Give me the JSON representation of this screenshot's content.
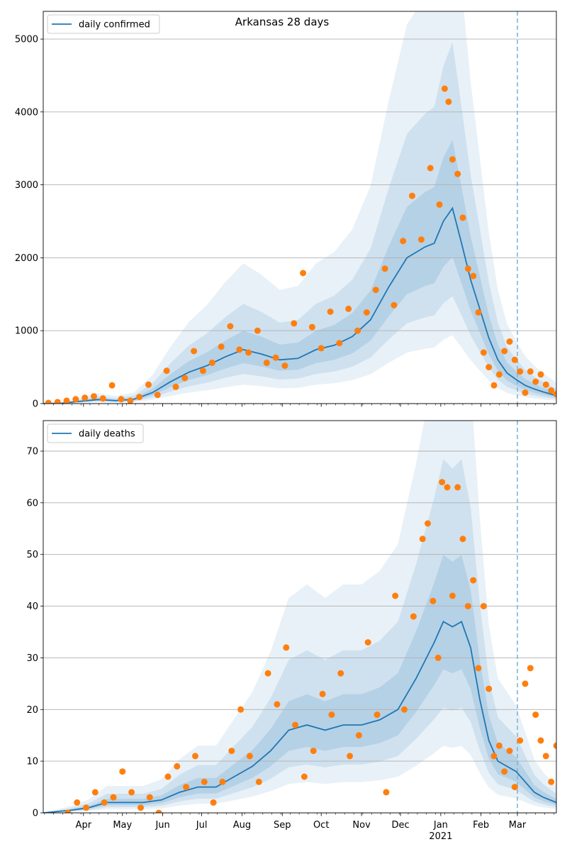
{
  "figure": {
    "title": "Arkansas 28 days",
    "colors": {
      "line": "#1f77b4",
      "points": "#ff7f0e",
      "band": "#1f77b4",
      "grid": "#b0b0b0",
      "forecast_line": "#7fb5d6"
    }
  },
  "chart_data": [
    {
      "type": "line",
      "title": "Arkansas 28 days",
      "legend": "daily confirmed",
      "legend_position": "top-left",
      "grid": "horizontal",
      "xlabel": "",
      "ylabel": "",
      "xlim": [
        "2020-03-01",
        "2021-03-31"
      ],
      "ylim": [
        0,
        5380
      ],
      "yticks": [
        0,
        1000,
        2000,
        3000,
        4000,
        5000
      ],
      "forecast_start": "2021-03-01",
      "series": [
        {
          "name": "daily confirmed",
          "kind": "line",
          "points": [
            [
              "2020-03-01",
              0
            ],
            [
              "2020-03-15",
              5
            ],
            [
              "2020-03-29",
              30
            ],
            [
              "2020-04-12",
              55
            ],
            [
              "2020-04-26",
              40
            ],
            [
              "2020-05-10",
              60
            ],
            [
              "2020-05-24",
              150
            ],
            [
              "2020-06-07",
              300
            ],
            [
              "2020-06-21",
              430
            ],
            [
              "2020-07-05",
              520
            ],
            [
              "2020-07-19",
              640
            ],
            [
              "2020-08-02",
              740
            ],
            [
              "2020-08-16",
              680
            ],
            [
              "2020-08-30",
              600
            ],
            [
              "2020-09-13",
              620
            ],
            [
              "2020-09-27",
              740
            ],
            [
              "2020-10-11",
              800
            ],
            [
              "2020-10-25",
              920
            ],
            [
              "2020-11-08",
              1150
            ],
            [
              "2020-11-22",
              1600
            ],
            [
              "2020-12-06",
              2000
            ],
            [
              "2020-12-20",
              2150
            ],
            [
              "2020-12-27",
              2200
            ],
            [
              "2021-01-03",
              2500
            ],
            [
              "2021-01-10",
              2680
            ],
            [
              "2021-01-17",
              2200
            ],
            [
              "2021-01-24",
              1700
            ],
            [
              "2021-01-31",
              1300
            ],
            [
              "2021-02-07",
              900
            ],
            [
              "2021-02-14",
              600
            ],
            [
              "2021-02-21",
              420
            ],
            [
              "2021-02-28",
              330
            ],
            [
              "2021-03-07",
              250
            ],
            [
              "2021-03-14",
              200
            ],
            [
              "2021-03-21",
              160
            ],
            [
              "2021-03-31",
              110
            ]
          ]
        },
        {
          "name": "observed",
          "kind": "scatter",
          "points": [
            [
              "2020-03-05",
              10
            ],
            [
              "2020-03-12",
              20
            ],
            [
              "2020-03-19",
              40
            ],
            [
              "2020-03-26",
              60
            ],
            [
              "2020-04-02",
              80
            ],
            [
              "2020-04-09",
              100
            ],
            [
              "2020-04-16",
              70
            ],
            [
              "2020-04-23",
              250
            ],
            [
              "2020-04-30",
              60
            ],
            [
              "2020-05-07",
              40
            ],
            [
              "2020-05-14",
              90
            ],
            [
              "2020-05-21",
              260
            ],
            [
              "2020-05-28",
              120
            ],
            [
              "2020-06-04",
              450
            ],
            [
              "2020-06-11",
              230
            ],
            [
              "2020-06-18",
              350
            ],
            [
              "2020-06-25",
              720
            ],
            [
              "2020-07-02",
              450
            ],
            [
              "2020-07-09",
              560
            ],
            [
              "2020-07-16",
              780
            ],
            [
              "2020-07-23",
              1060
            ],
            [
              "2020-07-30",
              740
            ],
            [
              "2020-08-06",
              700
            ],
            [
              "2020-08-13",
              1000
            ],
            [
              "2020-08-20",
              560
            ],
            [
              "2020-08-27",
              630
            ],
            [
              "2020-09-03",
              520
            ],
            [
              "2020-09-10",
              1100
            ],
            [
              "2020-09-17",
              1790
            ],
            [
              "2020-09-24",
              1050
            ],
            [
              "2020-10-01",
              760
            ],
            [
              "2020-10-08",
              1260
            ],
            [
              "2020-10-15",
              830
            ],
            [
              "2020-10-22",
              1300
            ],
            [
              "2020-10-29",
              1000
            ],
            [
              "2020-11-05",
              1250
            ],
            [
              "2020-11-12",
              1560
            ],
            [
              "2020-11-19",
              1850
            ],
            [
              "2020-11-26",
              1350
            ],
            [
              "2020-12-03",
              2230
            ],
            [
              "2020-12-10",
              2850
            ],
            [
              "2020-12-17",
              2250
            ],
            [
              "2020-12-24",
              3230
            ],
            [
              "2020-12-31",
              2730
            ],
            [
              "2021-01-04",
              4320
            ],
            [
              "2021-01-07",
              4140
            ],
            [
              "2021-01-10",
              3350
            ],
            [
              "2021-01-14",
              3150
            ],
            [
              "2021-01-18",
              2550
            ],
            [
              "2021-01-22",
              1850
            ],
            [
              "2021-01-26",
              1750
            ],
            [
              "2021-01-30",
              1250
            ],
            [
              "2021-02-03",
              700
            ],
            [
              "2021-02-07",
              500
            ],
            [
              "2021-02-11",
              250
            ],
            [
              "2021-02-15",
              400
            ],
            [
              "2021-02-19",
              720
            ],
            [
              "2021-02-23",
              850
            ],
            [
              "2021-02-27",
              600
            ],
            [
              "2021-03-03",
              440
            ],
            [
              "2021-03-07",
              150
            ],
            [
              "2021-03-11",
              440
            ],
            [
              "2021-03-15",
              300
            ],
            [
              "2021-03-19",
              400
            ],
            [
              "2021-03-23",
              260
            ],
            [
              "2021-03-27",
              180
            ],
            [
              "2021-03-31",
              130
            ]
          ]
        }
      ]
    },
    {
      "type": "line",
      "title": "",
      "legend": "daily deaths",
      "legend_position": "top-left",
      "grid": "horizontal",
      "xlabel": "",
      "ylabel": "",
      "xlim": [
        "2020-03-01",
        "2021-03-31"
      ],
      "ylim": [
        0,
        75.9
      ],
      "yticks": [
        0,
        10,
        20,
        30,
        40,
        50,
        60,
        70
      ],
      "xticks": [
        "Apr",
        "May",
        "Jun",
        "Jul",
        "Aug",
        "Sep",
        "Oct",
        "Nov",
        "Dec",
        "Jan",
        "Feb",
        "Mar"
      ],
      "xticks_dates": [
        "2020-04-01",
        "2020-05-01",
        "2020-06-01",
        "2020-07-01",
        "2020-08-01",
        "2020-09-01",
        "2020-10-01",
        "2020-11-01",
        "2020-12-01",
        "2021-01-01",
        "2021-02-01",
        "2021-03-01"
      ],
      "year_label": "2021",
      "forecast_start": "2021-03-01",
      "series": [
        {
          "name": "daily deaths",
          "kind": "line",
          "points": [
            [
              "2020-03-01",
              0
            ],
            [
              "2020-03-22",
              0.5
            ],
            [
              "2020-04-05",
              1
            ],
            [
              "2020-04-19",
              2
            ],
            [
              "2020-05-03",
              2
            ],
            [
              "2020-05-17",
              2
            ],
            [
              "2020-05-31",
              2.5
            ],
            [
              "2020-06-14",
              4
            ],
            [
              "2020-06-28",
              5
            ],
            [
              "2020-07-12",
              5
            ],
            [
              "2020-07-26",
              7
            ],
            [
              "2020-08-09",
              9
            ],
            [
              "2020-08-23",
              12
            ],
            [
              "2020-09-06",
              16
            ],
            [
              "2020-09-20",
              17
            ],
            [
              "2020-10-04",
              16
            ],
            [
              "2020-10-18",
              17
            ],
            [
              "2020-11-01",
              17
            ],
            [
              "2020-11-15",
              18
            ],
            [
              "2020-11-29",
              20
            ],
            [
              "2020-12-13",
              26
            ],
            [
              "2020-12-27",
              33
            ],
            [
              "2021-01-03",
              37
            ],
            [
              "2021-01-10",
              36
            ],
            [
              "2021-01-17",
              37
            ],
            [
              "2021-01-24",
              32
            ],
            [
              "2021-01-31",
              22
            ],
            [
              "2021-02-07",
              14
            ],
            [
              "2021-02-14",
              10
            ],
            [
              "2021-02-21",
              9
            ],
            [
              "2021-02-28",
              8
            ],
            [
              "2021-03-07",
              6
            ],
            [
              "2021-03-14",
              4
            ],
            [
              "2021-03-21",
              3
            ],
            [
              "2021-03-31",
              2
            ]
          ]
        },
        {
          "name": "observed",
          "kind": "scatter",
          "points": [
            [
              "2020-03-20",
              0
            ],
            [
              "2020-03-27",
              2
            ],
            [
              "2020-04-03",
              1
            ],
            [
              "2020-04-10",
              4
            ],
            [
              "2020-04-17",
              2
            ],
            [
              "2020-04-24",
              3
            ],
            [
              "2020-05-01",
              8
            ],
            [
              "2020-05-08",
              4
            ],
            [
              "2020-05-15",
              1
            ],
            [
              "2020-05-22",
              3
            ],
            [
              "2020-05-29",
              0
            ],
            [
              "2020-06-05",
              7
            ],
            [
              "2020-06-12",
              9
            ],
            [
              "2020-06-19",
              5
            ],
            [
              "2020-06-26",
              11
            ],
            [
              "2020-07-03",
              6
            ],
            [
              "2020-07-10",
              2
            ],
            [
              "2020-07-17",
              6
            ],
            [
              "2020-07-24",
              12
            ],
            [
              "2020-07-31",
              20
            ],
            [
              "2020-08-07",
              11
            ],
            [
              "2020-08-14",
              6
            ],
            [
              "2020-08-21",
              27
            ],
            [
              "2020-08-28",
              21
            ],
            [
              "2020-09-04",
              32
            ],
            [
              "2020-09-11",
              17
            ],
            [
              "2020-09-18",
              7
            ],
            [
              "2020-09-25",
              12
            ],
            [
              "2020-10-02",
              23
            ],
            [
              "2020-10-09",
              19
            ],
            [
              "2020-10-16",
              27
            ],
            [
              "2020-10-23",
              11
            ],
            [
              "2020-10-30",
              15
            ],
            [
              "2020-11-06",
              33
            ],
            [
              "2020-11-13",
              19
            ],
            [
              "2020-11-20",
              4
            ],
            [
              "2020-11-27",
              42
            ],
            [
              "2020-12-04",
              20
            ],
            [
              "2020-12-11",
              38
            ],
            [
              "2020-12-18",
              53
            ],
            [
              "2020-12-22",
              56
            ],
            [
              "2020-12-26",
              41
            ],
            [
              "2020-12-30",
              30
            ],
            [
              "2021-01-02",
              64
            ],
            [
              "2021-01-06",
              63
            ],
            [
              "2021-01-10",
              42
            ],
            [
              "2021-01-14",
              63
            ],
            [
              "2021-01-18",
              53
            ],
            [
              "2021-01-22",
              40
            ],
            [
              "2021-01-26",
              45
            ],
            [
              "2021-01-30",
              28
            ],
            [
              "2021-02-03",
              40
            ],
            [
              "2021-02-07",
              24
            ],
            [
              "2021-02-11",
              11
            ],
            [
              "2021-02-15",
              13
            ],
            [
              "2021-02-19",
              8
            ],
            [
              "2021-02-23",
              12
            ],
            [
              "2021-02-27",
              5
            ],
            [
              "2021-03-03",
              14
            ],
            [
              "2021-03-07",
              25
            ],
            [
              "2021-03-11",
              28
            ],
            [
              "2021-03-15",
              19
            ],
            [
              "2021-03-19",
              14
            ],
            [
              "2021-03-23",
              11
            ],
            [
              "2021-03-27",
              6
            ],
            [
              "2021-03-31",
              13
            ]
          ]
        }
      ]
    }
  ]
}
